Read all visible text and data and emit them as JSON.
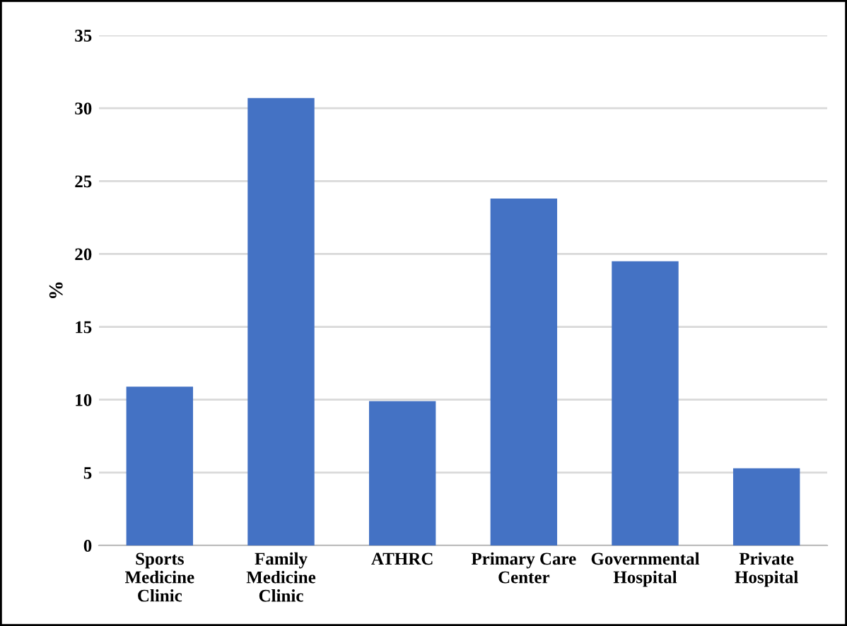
{
  "chart_data": {
    "type": "bar",
    "ylabel": "%",
    "categories": [
      "Sports\nMedicine\nClinic",
      "Family\nMedicine\nClinic",
      "ATHRC",
      "Primary Care\nCenter",
      "Governmental\nHospital",
      "Private\nHospital"
    ],
    "values": [
      10.9,
      30.7,
      9.9,
      23.8,
      19.5,
      5.3
    ],
    "color": "#4472c4",
    "ylim": [
      0,
      35
    ],
    "yticks": [
      0,
      5,
      10,
      15,
      20,
      25,
      30,
      35
    ],
    "grid": "y",
    "legend": false
  }
}
